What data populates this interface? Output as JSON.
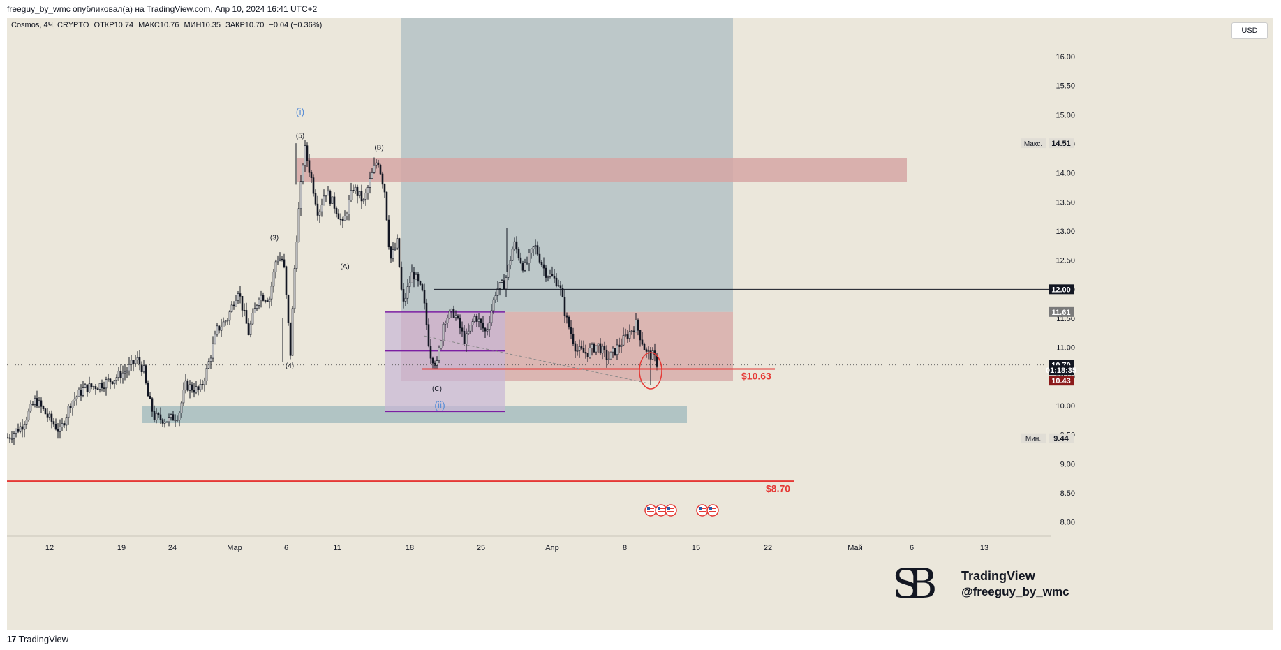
{
  "header": {
    "publisher_line": "freeguy_by_wmc опубликовал(а) на TradingView.com, Апр 10, 2024 16:41 UTC+2"
  },
  "footer": {
    "logo_text": "TradingView"
  },
  "watermark": {
    "title": "TradingView",
    "handle": "@freeguy_by_wmc"
  },
  "colors": {
    "background": "#ebe7db",
    "candle": "#131722",
    "red_level": "#e53935",
    "zone_red": "#d6a6a4",
    "zone_target": "#aebec3",
    "zone_support": "#a7bdc0",
    "zone_purple": "#c7b6d6",
    "purple_line": "#7b1fa2",
    "wave_blue": "#5b8fd6"
  },
  "chart_data": {
    "type": "candlestick",
    "symbol_line": {
      "name": "Cosmos, 4Ч, CRYPTO",
      "open": "ОТКР10.74",
      "high": "МАКС10.76",
      "low": "МИН10.35",
      "close": "ЗАКР10.70",
      "change": "−0.04 (−0.36%)"
    },
    "currency": "USD",
    "ylim": [
      7.9,
      16.6
    ],
    "y_ticks": [
      "16.00",
      "15.50",
      "15.00",
      "14.50",
      "14.00",
      "13.50",
      "13.00",
      "12.50",
      "12.00",
      "11.50",
      "11.00",
      "10.50",
      "10.00",
      "9.50",
      "9.00",
      "8.50",
      "8.00"
    ],
    "x_ticks": [
      "12",
      "19",
      "24",
      "Мар",
      "6",
      "11",
      "18",
      "25",
      "Апр",
      "8",
      "15",
      "22",
      "Май",
      "6",
      "13"
    ],
    "price_path": [
      [
        0,
        9.45
      ],
      [
        20,
        9.65
      ],
      [
        40,
        10.1
      ],
      [
        55,
        9.85
      ],
      [
        75,
        9.55
      ],
      [
        90,
        10.05
      ],
      [
        110,
        10.3
      ],
      [
        130,
        10.35
      ],
      [
        150,
        10.45
      ],
      [
        170,
        10.6
      ],
      [
        185,
        10.8
      ],
      [
        195,
        10.6
      ],
      [
        200,
        10.2
      ],
      [
        210,
        9.8
      ],
      [
        230,
        9.75
      ],
      [
        245,
        9.85
      ],
      [
        255,
        10.35
      ],
      [
        275,
        10.25
      ],
      [
        285,
        10.6
      ],
      [
        300,
        11.3
      ],
      [
        315,
        11.5
      ],
      [
        330,
        12.0
      ],
      [
        345,
        11.25
      ],
      [
        360,
        11.9
      ],
      [
        375,
        11.85
      ],
      [
        385,
        12.55
      ],
      [
        395,
        12.5
      ],
      [
        405,
        10.9
      ],
      [
        412,
        12.6
      ],
      [
        418,
        13.5
      ],
      [
        425,
        14.45
      ],
      [
        435,
        13.9
      ],
      [
        445,
        13.3
      ],
      [
        455,
        13.7
      ],
      [
        470,
        13.4
      ],
      [
        480,
        13.1
      ],
      [
        495,
        13.75
      ],
      [
        510,
        13.5
      ],
      [
        520,
        13.9
      ],
      [
        530,
        14.25
      ],
      [
        540,
        13.7
      ],
      [
        548,
        12.5
      ],
      [
        558,
        12.8
      ],
      [
        566,
        11.7
      ],
      [
        580,
        12.3
      ],
      [
        595,
        11.9
      ],
      [
        605,
        10.9
      ],
      [
        615,
        10.7
      ],
      [
        625,
        11.5
      ],
      [
        640,
        11.6
      ],
      [
        655,
        11.1
      ],
      [
        670,
        11.55
      ],
      [
        685,
        11.25
      ],
      [
        700,
        12.0
      ],
      [
        712,
        12.1
      ],
      [
        725,
        12.8
      ],
      [
        740,
        12.35
      ],
      [
        755,
        12.75
      ],
      [
        770,
        12.3
      ],
      [
        790,
        12.1
      ],
      [
        800,
        11.5
      ],
      [
        815,
        10.95
      ],
      [
        830,
        10.9
      ],
      [
        845,
        11.05
      ],
      [
        860,
        10.8
      ],
      [
        880,
        11.1
      ],
      [
        900,
        11.4
      ],
      [
        915,
        10.9
      ],
      [
        925,
        10.85
      ],
      [
        932,
        10.7
      ]
    ],
    "levels": [
      {
        "label": "Макс.",
        "value": "14.51",
        "price": 14.51
      },
      {
        "label": "",
        "value": "12.00",
        "price": 12.0
      },
      {
        "label": "",
        "value": "11.61",
        "price": 11.61
      },
      {
        "label": "",
        "value": "10.70",
        "price": 10.7
      },
      {
        "label": "",
        "value": "01:18:35",
        "price": 10.61
      },
      {
        "label": "",
        "value": "10.43",
        "price": 10.43
      },
      {
        "label": "Мин.",
        "value": "9.44",
        "price": 9.44
      }
    ],
    "price_labels": [
      {
        "text": "$10.63",
        "price": 10.63
      },
      {
        "text": "$8.70",
        "price": 8.7
      }
    ],
    "wave_labels": [
      {
        "text": "(i)",
        "price": 15.0,
        "x": 420,
        "style": "blue"
      },
      {
        "text": "(5)",
        "price": 14.6,
        "x": 420,
        "style": "dark"
      },
      {
        "text": "(B)",
        "price": 14.4,
        "x": 533,
        "style": "dark"
      },
      {
        "text": "(3)",
        "price": 12.85,
        "x": 383,
        "style": "dark"
      },
      {
        "text": "(A)",
        "price": 12.35,
        "x": 484,
        "style": "dark"
      },
      {
        "text": "(4)",
        "price": 10.65,
        "x": 405,
        "style": "dark"
      },
      {
        "text": "(C)",
        "price": 10.25,
        "x": 616,
        "style": "dark"
      },
      {
        "text": "(ii)",
        "price": 9.95,
        "x": 620,
        "style": "blue"
      }
    ]
  }
}
